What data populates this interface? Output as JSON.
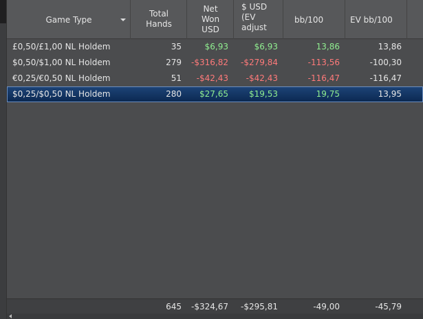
{
  "table": {
    "columns": [
      {
        "label": "Game Type",
        "colored": false
      },
      {
        "label": "Total\nHands",
        "colored": false
      },
      {
        "label": "Net\nWon\nUSD",
        "colored": true
      },
      {
        "label": "$ USD\n(EV\nadjust",
        "colored": true
      },
      {
        "label": "bb/100",
        "colored": true
      },
      {
        "label": "EV bb/100",
        "colored": false
      }
    ],
    "rows": [
      [
        "£0,50/£1,00 NL Holdem",
        "35",
        "$6,93",
        "$6,93",
        "13,86",
        "13,86"
      ],
      [
        "$0,50/$1,00 NL Holdem",
        "279",
        "-$316,82",
        "-$279,84",
        "-113,56",
        "-100,30"
      ],
      [
        "€0,25/€0,50 NL Holdem",
        "51",
        "-$42,43",
        "-$42,43",
        "-116,47",
        "-116,47"
      ],
      [
        "$0,25/$0,50 NL Holdem",
        "280",
        "$27,65",
        "$19,53",
        "19,75",
        "13,95"
      ]
    ],
    "selected_row": 3,
    "totals": [
      "645",
      "-$324,67",
      "-$295,81",
      "-49,00",
      "-45,79"
    ]
  }
}
